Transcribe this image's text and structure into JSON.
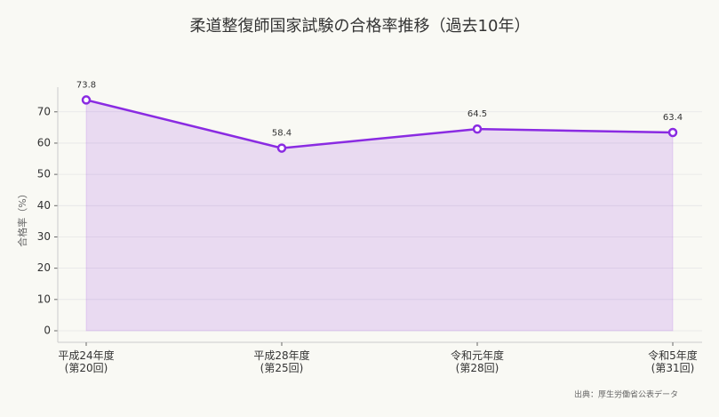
{
  "chart_data": {
    "type": "line",
    "title": "柔道整復師国家試験の合格率推移（過去10年）",
    "y_label": "合格率（%）",
    "source": "出典：厚生労働省公表データ",
    "categories": [
      "平成24年度\n(第20回)",
      "平成28年度\n(第25回)",
      "令和元年度\n(第28回)",
      "令和5年度\n(第31回)"
    ],
    "series": [
      {
        "name": "合格率",
        "color": "#8a2be2",
        "values": [
          73.8,
          58.4,
          64.5,
          63.4
        ]
      }
    ],
    "area": true,
    "ylim": [
      -3.7,
      77.9
    ],
    "yticks": [
      0,
      10,
      20,
      30,
      40,
      50,
      60,
      70
    ],
    "grid": true
  }
}
